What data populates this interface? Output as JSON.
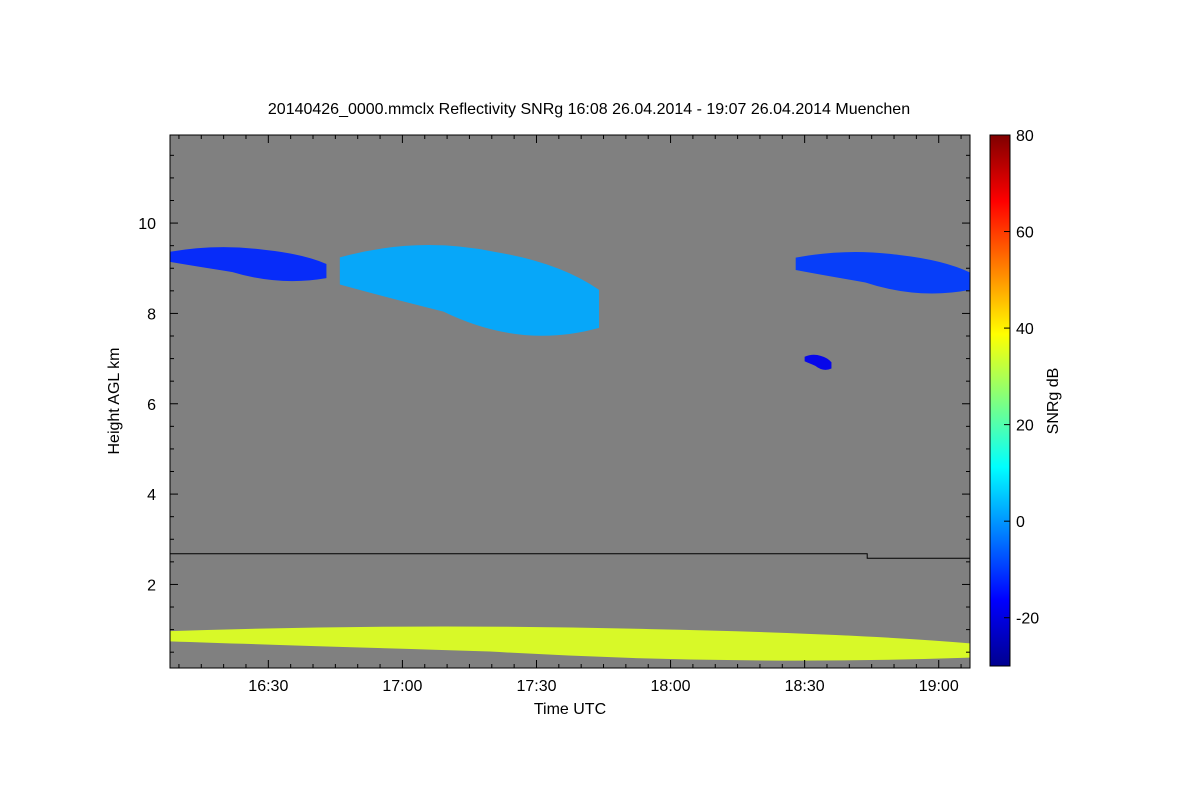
{
  "chart_data": {
    "type": "heatmap",
    "title": "20140426_0000.mmclx Reflectivity SNRg   16:08 26.04.2014 - 19:07 26.04.2014 Muenchen",
    "xlabel": "Time UTC",
    "ylabel": "Height AGL km",
    "x_tick_labels": [
      "16:30",
      "17:00",
      "17:30",
      "18:00",
      "18:30",
      "19:00"
    ],
    "x_tick_minutes": [
      990,
      1020,
      1050,
      1080,
      1110,
      1140
    ],
    "xlim_minutes": [
      968,
      1147
    ],
    "y_ticks": [
      2,
      4,
      6,
      8,
      10
    ],
    "ylim": [
      0.15,
      11.95
    ],
    "colorbar": {
      "label": "SNRg dB",
      "ticks": [
        -20,
        0,
        20,
        40,
        60,
        80
      ],
      "range": [
        -30,
        80
      ]
    },
    "background_color": "#808080",
    "layers": [
      {
        "name": "upper-cloud-1",
        "t_start": 968,
        "t_end": 1003,
        "base_km": 8.6,
        "top_km": 9.5,
        "snr_db": -12
      },
      {
        "name": "upper-cloud-2",
        "t_start": 1006,
        "t_end": 1064,
        "base_km": 7.2,
        "top_km": 9.6,
        "snr_db": 2
      },
      {
        "name": "upper-cloud-3",
        "t_start": 1108,
        "t_end": 1147,
        "base_km": 8.3,
        "top_km": 9.4,
        "snr_db": -10
      },
      {
        "name": "mid-cloud-patch",
        "t_start": 1110,
        "t_end": 1116,
        "base_km": 6.7,
        "top_km": 7.1,
        "snr_db": -18
      },
      {
        "name": "boundary-layer",
        "t_start": 968,
        "t_end": 1147,
        "base_km": 0.2,
        "top_km": 1.1,
        "snr_db": 35
      }
    ],
    "threshold_line": [
      {
        "t": 968,
        "h": 2.68
      },
      {
        "t": 1124,
        "h": 2.68
      },
      {
        "t": 1124,
        "h": 2.58
      },
      {
        "t": 1147,
        "h": 2.58
      }
    ]
  }
}
